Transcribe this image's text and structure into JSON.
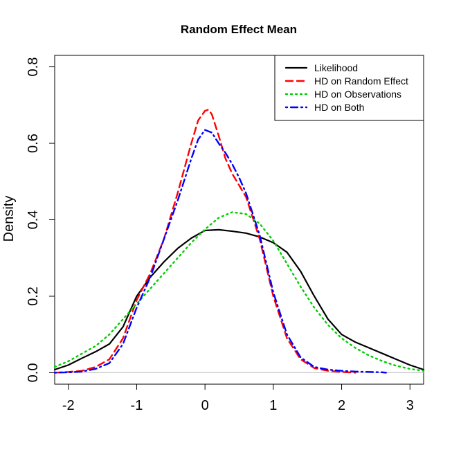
{
  "chart_data": {
    "type": "line",
    "title": "Random Effect Mean",
    "xlabel": "",
    "ylabel": "Density",
    "xlim": [
      -2.2,
      3.2
    ],
    "ylim": [
      -0.03,
      0.83
    ],
    "x_ticks": [
      -2,
      -1,
      0,
      1,
      2,
      3
    ],
    "x_tick_labels": [
      "-2",
      "-1",
      "0",
      "1",
      "2",
      "3"
    ],
    "y_ticks": [
      0.0,
      0.2,
      0.4,
      0.6,
      0.8
    ],
    "y_tick_labels": [
      "0.0",
      "0.2",
      "0.4",
      "0.6",
      "0.8"
    ],
    "baseline": 0,
    "baseline_color": "#bebebe",
    "legend_position": "top-right",
    "series": [
      {
        "name": "Likelihood",
        "color": "#000000",
        "dash": "solid",
        "x": [
          -2.2,
          -2.0,
          -1.8,
          -1.6,
          -1.4,
          -1.2,
          -1.0,
          -0.8,
          -0.6,
          -0.4,
          -0.2,
          0.0,
          0.2,
          0.4,
          0.6,
          0.8,
          1.0,
          1.2,
          1.4,
          1.6,
          1.8,
          2.0,
          2.2,
          2.4,
          2.6,
          2.8,
          3.0,
          3.2
        ],
        "y": [
          0.008,
          0.02,
          0.038,
          0.055,
          0.075,
          0.12,
          0.2,
          0.25,
          0.29,
          0.325,
          0.352,
          0.372,
          0.374,
          0.37,
          0.365,
          0.355,
          0.34,
          0.315,
          0.265,
          0.2,
          0.14,
          0.1,
          0.08,
          0.065,
          0.05,
          0.035,
          0.02,
          0.008
        ]
      },
      {
        "name": "HD on Random Effect",
        "color": "#ff0000",
        "dash": "dashed",
        "x": [
          -2.2,
          -2.0,
          -1.8,
          -1.6,
          -1.4,
          -1.2,
          -1.0,
          -0.8,
          -0.6,
          -0.4,
          -0.2,
          -0.1,
          0.0,
          0.05,
          0.1,
          0.2,
          0.3,
          0.4,
          0.5,
          0.6,
          0.8,
          1.0,
          1.2,
          1.4,
          1.6,
          1.8,
          2.0,
          2.2
        ],
        "y": [
          0.0,
          0.002,
          0.005,
          0.015,
          0.035,
          0.09,
          0.19,
          0.26,
          0.35,
          0.47,
          0.6,
          0.66,
          0.685,
          0.688,
          0.676,
          0.62,
          0.56,
          0.52,
          0.49,
          0.46,
          0.35,
          0.2,
          0.09,
          0.035,
          0.012,
          0.005,
          0.002,
          0.0
        ]
      },
      {
        "name": "HD on Observations",
        "color": "#00cd00",
        "dash": "dotted",
        "x": [
          -2.2,
          -2.0,
          -1.8,
          -1.6,
          -1.4,
          -1.2,
          -1.0,
          -0.8,
          -0.6,
          -0.4,
          -0.2,
          0.0,
          0.2,
          0.4,
          0.6,
          0.8,
          1.0,
          1.2,
          1.4,
          1.6,
          1.8,
          2.0,
          2.2,
          2.4,
          2.6,
          2.8,
          3.0,
          3.2
        ],
        "y": [
          0.015,
          0.03,
          0.05,
          0.07,
          0.1,
          0.14,
          0.18,
          0.22,
          0.26,
          0.3,
          0.34,
          0.375,
          0.405,
          0.42,
          0.415,
          0.39,
          0.345,
          0.285,
          0.225,
          0.17,
          0.125,
          0.09,
          0.065,
          0.045,
          0.03,
          0.018,
          0.01,
          0.005
        ]
      },
      {
        "name": "HD on Both",
        "color": "#0000ff",
        "dash": "dotdash",
        "x": [
          -2.2,
          -2.0,
          -1.8,
          -1.6,
          -1.4,
          -1.2,
          -1.0,
          -0.8,
          -0.6,
          -0.4,
          -0.2,
          -0.1,
          0.0,
          0.1,
          0.2,
          0.3,
          0.4,
          0.5,
          0.6,
          0.8,
          1.0,
          1.2,
          1.4,
          1.6,
          1.8,
          2.0,
          2.2,
          2.4,
          2.6,
          2.65
        ],
        "y": [
          0.0,
          0.001,
          0.003,
          0.01,
          0.025,
          0.075,
          0.17,
          0.25,
          0.35,
          0.45,
          0.56,
          0.61,
          0.635,
          0.628,
          0.6,
          0.575,
          0.545,
          0.51,
          0.47,
          0.36,
          0.21,
          0.1,
          0.04,
          0.015,
          0.008,
          0.005,
          0.003,
          0.002,
          0.001,
          0.0
        ]
      }
    ]
  }
}
